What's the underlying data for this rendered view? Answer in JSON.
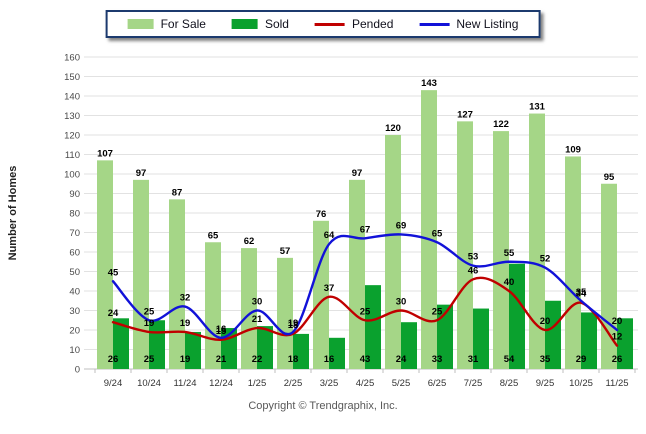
{
  "labels": {
    "ylabel": "Number of Homes",
    "copyright": "Copyright © Trendgraphix, Inc."
  },
  "chart_data": {
    "type": "bar+line combo",
    "title": "",
    "xlabel": "",
    "ylabel": "Number of Homes",
    "ylim": [
      0,
      160
    ],
    "ytick_step": 10,
    "grid": true,
    "legend_position": "top-center",
    "categories": [
      "9/24",
      "10/24",
      "11/24",
      "12/24",
      "1/25",
      "2/25",
      "3/25",
      "4/25",
      "5/25",
      "6/25",
      "7/25",
      "8/25",
      "9/25",
      "10/25",
      "11/25"
    ],
    "series": [
      {
        "name": "For Sale",
        "type": "bar",
        "color": "#a5d687",
        "values": [
          107,
          97,
          87,
          65,
          62,
          57,
          76,
          97,
          120,
          143,
          127,
          122,
          131,
          109,
          95
        ]
      },
      {
        "name": "Sold",
        "type": "bar",
        "color": "#0aa12e",
        "values": [
          26,
          25,
          19,
          21,
          22,
          18,
          16,
          43,
          24,
          33,
          31,
          54,
          35,
          29,
          26
        ]
      },
      {
        "name": "Pended",
        "type": "line",
        "color": "#c00000",
        "values": [
          24,
          19,
          19,
          15,
          21,
          18,
          37,
          25,
          30,
          25,
          46,
          40,
          20,
          34,
          12
        ]
      },
      {
        "name": "New Listing",
        "type": "line",
        "color": "#1212d8",
        "values": [
          45,
          25,
          32,
          16,
          30,
          19,
          64,
          67,
          69,
          65,
          53,
          55,
          52,
          35,
          20
        ]
      }
    ]
  }
}
